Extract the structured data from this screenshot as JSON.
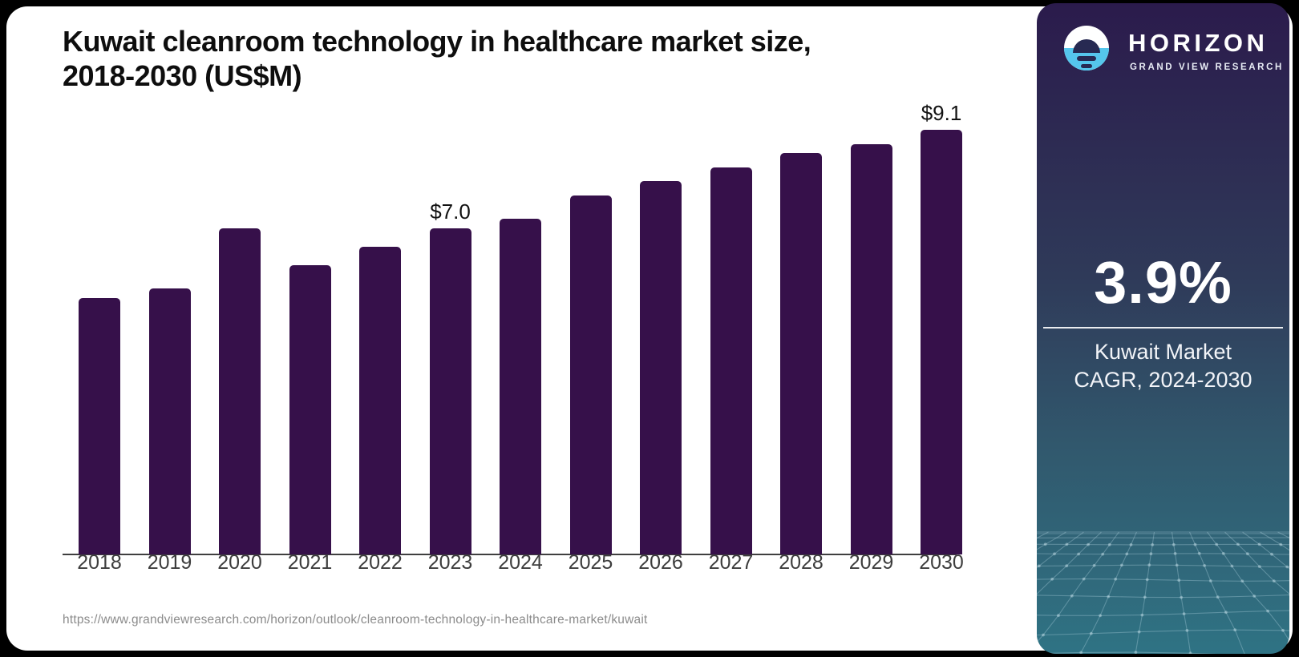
{
  "header": {
    "title_line1": "Kuwait cleanroom technology in healthcare market size,",
    "title_line2": "2018-2030 (US$M)"
  },
  "footer": {
    "source_url": "https://www.grandviewresearch.com/horizon/outlook/cleanroom-technology-in-healthcare-market/kuwait"
  },
  "chart_data": {
    "type": "bar",
    "title": "Kuwait cleanroom technology in healthcare market size, 2018-2030 (US$M)",
    "unit": "US$M",
    "categories": [
      "2018",
      "2019",
      "2020",
      "2021",
      "2022",
      "2023",
      "2024",
      "2025",
      "2026",
      "2027",
      "2028",
      "2029",
      "2030"
    ],
    "values": [
      5.5,
      5.7,
      7.0,
      6.2,
      6.6,
      7.0,
      7.2,
      7.7,
      8.0,
      8.3,
      8.6,
      8.8,
      9.1
    ],
    "point_labels": {
      "2023": "$7.0",
      "2030": "$9.1"
    },
    "xlabel": "",
    "ylabel": "",
    "ylim": [
      0,
      9.8
    ],
    "grid": false,
    "legend": false,
    "bar_color": "#36104A",
    "axis_color": "#3F3F3F",
    "tick_label_color": "#3D3D3D"
  },
  "sidebar": {
    "logo": {
      "brand": "HORIZON",
      "subtitle": "GRAND VIEW RESEARCH",
      "icon": "horizon-sun-icon",
      "icon_blue": "#55C6EC",
      "icon_dark": "#272A52"
    },
    "stat": {
      "value": "3.9%",
      "label_line1": "Kuwait Market",
      "label_line2": "CAGR, 2024-2030"
    },
    "gradient_top": "#2B1B4C",
    "gradient_bottom": "#2F7384"
  }
}
